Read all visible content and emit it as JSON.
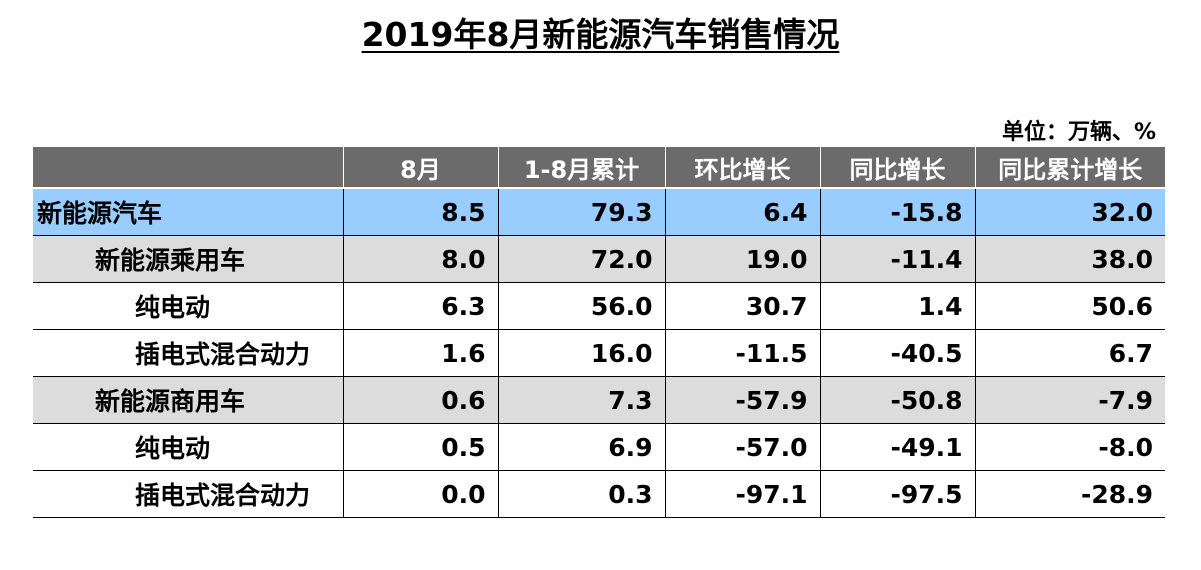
{
  "title": "2019年8月新能源汽车销售情况",
  "unit": "单位：万辆、%",
  "table": {
    "headers": [
      "",
      "8月",
      "1-8月累计",
      "环比增长",
      "同比增长",
      "同比累计增长"
    ],
    "rows": [
      {
        "label": "新能源汽车",
        "level": 0,
        "bg": "#99ccff",
        "values": [
          "8.5",
          "79.3",
          "6.4",
          "-15.8",
          "32.0"
        ]
      },
      {
        "label": "新能源乘用车",
        "level": 1,
        "bg": "#dcdcdc",
        "values": [
          "8.0",
          "72.0",
          "19.0",
          "-11.4",
          "38.0"
        ]
      },
      {
        "label": "纯电动",
        "level": 2,
        "bg": "#ffffff",
        "values": [
          "6.3",
          "56.0",
          "30.7",
          "1.4",
          "50.6"
        ]
      },
      {
        "label": "插电式混合动力",
        "level": 2,
        "bg": "#ffffff",
        "values": [
          "1.6",
          "16.0",
          "-11.5",
          "-40.5",
          "6.7"
        ]
      },
      {
        "label": "新能源商用车",
        "level": 1,
        "bg": "#dcdcdc",
        "values": [
          "0.6",
          "7.3",
          "-57.9",
          "-50.8",
          "-7.9"
        ]
      },
      {
        "label": "纯电动",
        "level": 2,
        "bg": "#ffffff",
        "values": [
          "0.5",
          "6.9",
          "-57.0",
          "-49.1",
          "-8.0"
        ]
      },
      {
        "label": "插电式混合动力",
        "level": 2,
        "bg": "#ffffff",
        "values": [
          "0.0",
          "0.3",
          "-97.1",
          "-97.5",
          "-28.9"
        ]
      }
    ]
  },
  "colors": {
    "header_bg": "#6b6b6b",
    "highlight_row": "#99ccff",
    "subtotal_row": "#dcdcdc"
  }
}
